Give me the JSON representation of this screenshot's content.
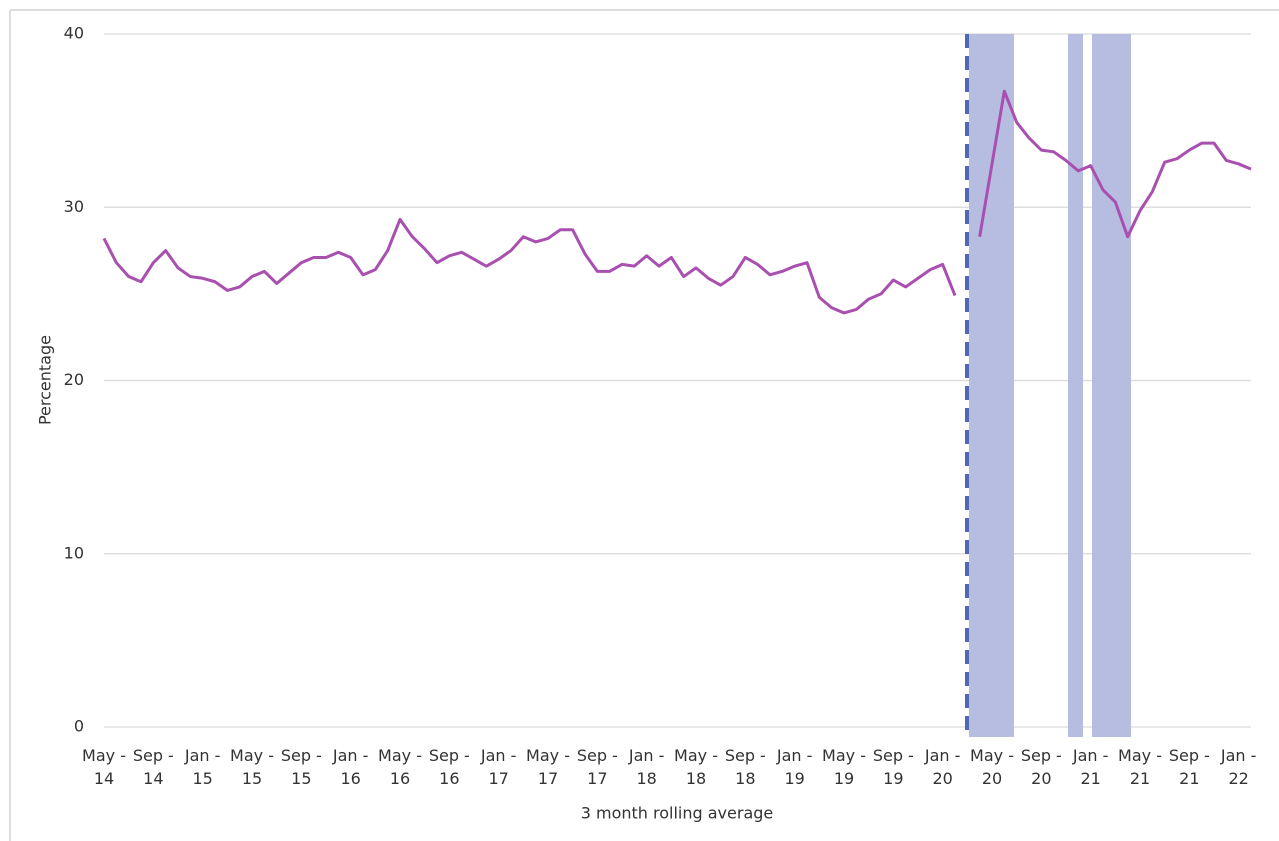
{
  "chart_data": {
    "type": "line",
    "y_label": "Percentage",
    "x_label": "3 month rolling average",
    "categories": [
      "May - 14",
      null,
      null,
      null,
      "Sep - 14",
      null,
      null,
      null,
      "Jan - 15",
      null,
      null,
      null,
      "May - 15",
      null,
      null,
      null,
      "Sep - 15",
      null,
      null,
      null,
      "Jan - 16",
      null,
      null,
      null,
      "May - 16",
      null,
      null,
      null,
      "Sep - 16",
      null,
      null,
      null,
      "Jan - 17",
      null,
      null,
      null,
      "May - 17",
      null,
      null,
      null,
      "Sep - 17",
      null,
      null,
      null,
      "Jan - 18",
      null,
      null,
      null,
      "May - 18",
      null,
      null,
      null,
      "Sep - 18",
      null,
      null,
      null,
      "Jan - 19",
      null,
      null,
      null,
      "May - 19",
      null,
      null,
      null,
      "Sep - 19",
      null,
      null,
      null,
      "Jan - 20",
      null,
      null,
      null,
      "May - 20",
      null,
      null,
      null,
      "Sep - 20",
      null,
      null,
      null,
      "Jan - 21",
      null,
      null,
      null,
      "May - 21",
      null,
      null,
      null,
      "Sep - 21",
      null,
      null,
      null,
      "Jan - 22",
      null
    ],
    "values": [
      28.2,
      26.8,
      26.0,
      25.7,
      26.8,
      27.5,
      26.5,
      26.0,
      25.9,
      25.7,
      25.2,
      25.4,
      26.0,
      26.3,
      25.6,
      26.2,
      26.8,
      27.1,
      27.1,
      27.4,
      27.1,
      26.1,
      26.4,
      27.5,
      29.3,
      28.3,
      27.6,
      26.8,
      27.2,
      27.4,
      27.0,
      26.6,
      27.0,
      27.5,
      28.3,
      28.0,
      28.2,
      28.7,
      28.7,
      27.3,
      26.3,
      26.3,
      26.7,
      26.6,
      27.2,
      26.6,
      27.1,
      26.0,
      26.5,
      25.9,
      25.5,
      26.0,
      27.1,
      26.7,
      26.1,
      26.3,
      26.6,
      26.8,
      24.8,
      24.2,
      23.9,
      24.1,
      24.7,
      25.0,
      25.8,
      25.4,
      25.9,
      26.4,
      26.7,
      24.9,
      null,
      28.3,
      32.5,
      36.7,
      34.9,
      34.0,
      33.3,
      33.2,
      32.7,
      32.1,
      32.4,
      31.0,
      30.3,
      28.3,
      29.8,
      30.9,
      32.6,
      32.8,
      33.3,
      33.7,
      33.7,
      32.7,
      32.5,
      32.2
    ],
    "color": "#a94fb0",
    "ylim": [
      0,
      40
    ],
    "yticks": [
      0,
      10,
      20,
      30,
      40
    ],
    "grid": true
  }
}
